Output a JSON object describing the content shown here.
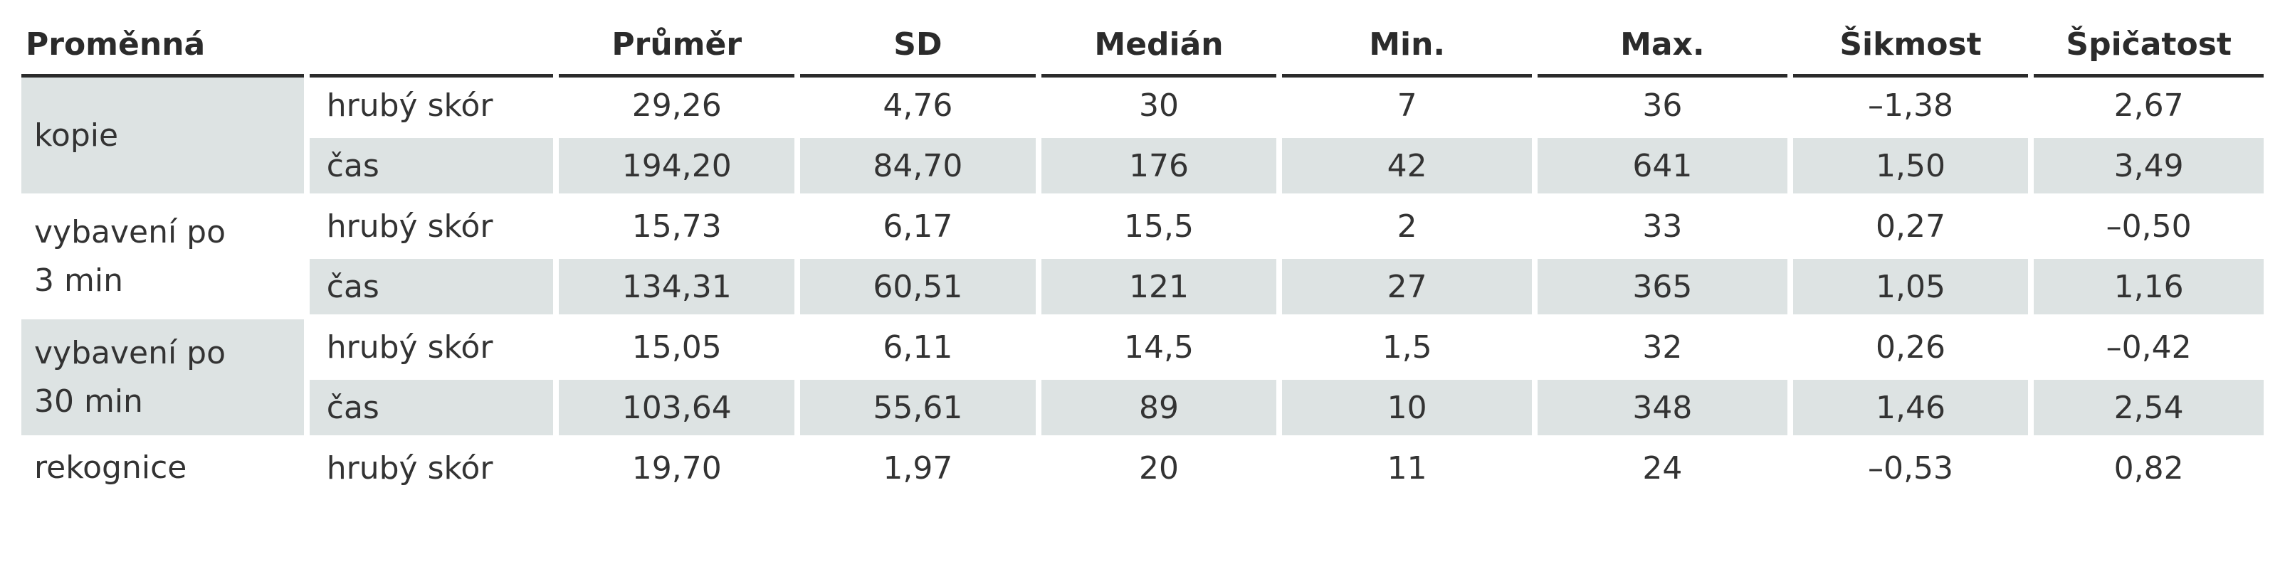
{
  "table": {
    "headers": [
      "Proměnná",
      "",
      "Průměr",
      "SD",
      "Medián",
      "Min.",
      "Max.",
      "Šikmost",
      "Špičatost"
    ],
    "groups": [
      {
        "label": "kopie",
        "rows": [
          {
            "sub": "hrubý skór",
            "values": [
              "29,26",
              "4,76",
              "30",
              "7",
              "36",
              "–1,38",
              "2,67"
            ]
          },
          {
            "sub": "čas",
            "values": [
              "194,20",
              "84,70",
              "176",
              "42",
              "641",
              "1,50",
              "3,49"
            ]
          }
        ]
      },
      {
        "label": "vybavení po\n 3 min",
        "rows": [
          {
            "sub": "hrubý skór",
            "values": [
              "15,73",
              "6,17",
              "15,5",
              "2",
              "33",
              "0,27",
              "–0,50"
            ]
          },
          {
            "sub": "čas",
            "values": [
              "134,31",
              "60,51",
              "121",
              "27",
              "365",
              "1,05",
              "1,16"
            ]
          }
        ]
      },
      {
        "label": "vybavení po\n 30 min",
        "rows": [
          {
            "sub": "hrubý skór",
            "values": [
              "15,05",
              "6,11",
              "14,5",
              "1,5",
              "32",
              "0,26",
              "–0,42"
            ]
          },
          {
            "sub": "čas",
            "values": [
              "103,64",
              "55,61",
              "89",
              "10",
              "348",
              "1,46",
              "2,54"
            ]
          }
        ]
      },
      {
        "label": "rekognice",
        "rows": [
          {
            "sub": "hrubý skór",
            "values": [
              "19,70",
              "1,97",
              "20",
              "11",
              "24",
              "–0,53",
              "0,82"
            ]
          }
        ]
      }
    ]
  }
}
